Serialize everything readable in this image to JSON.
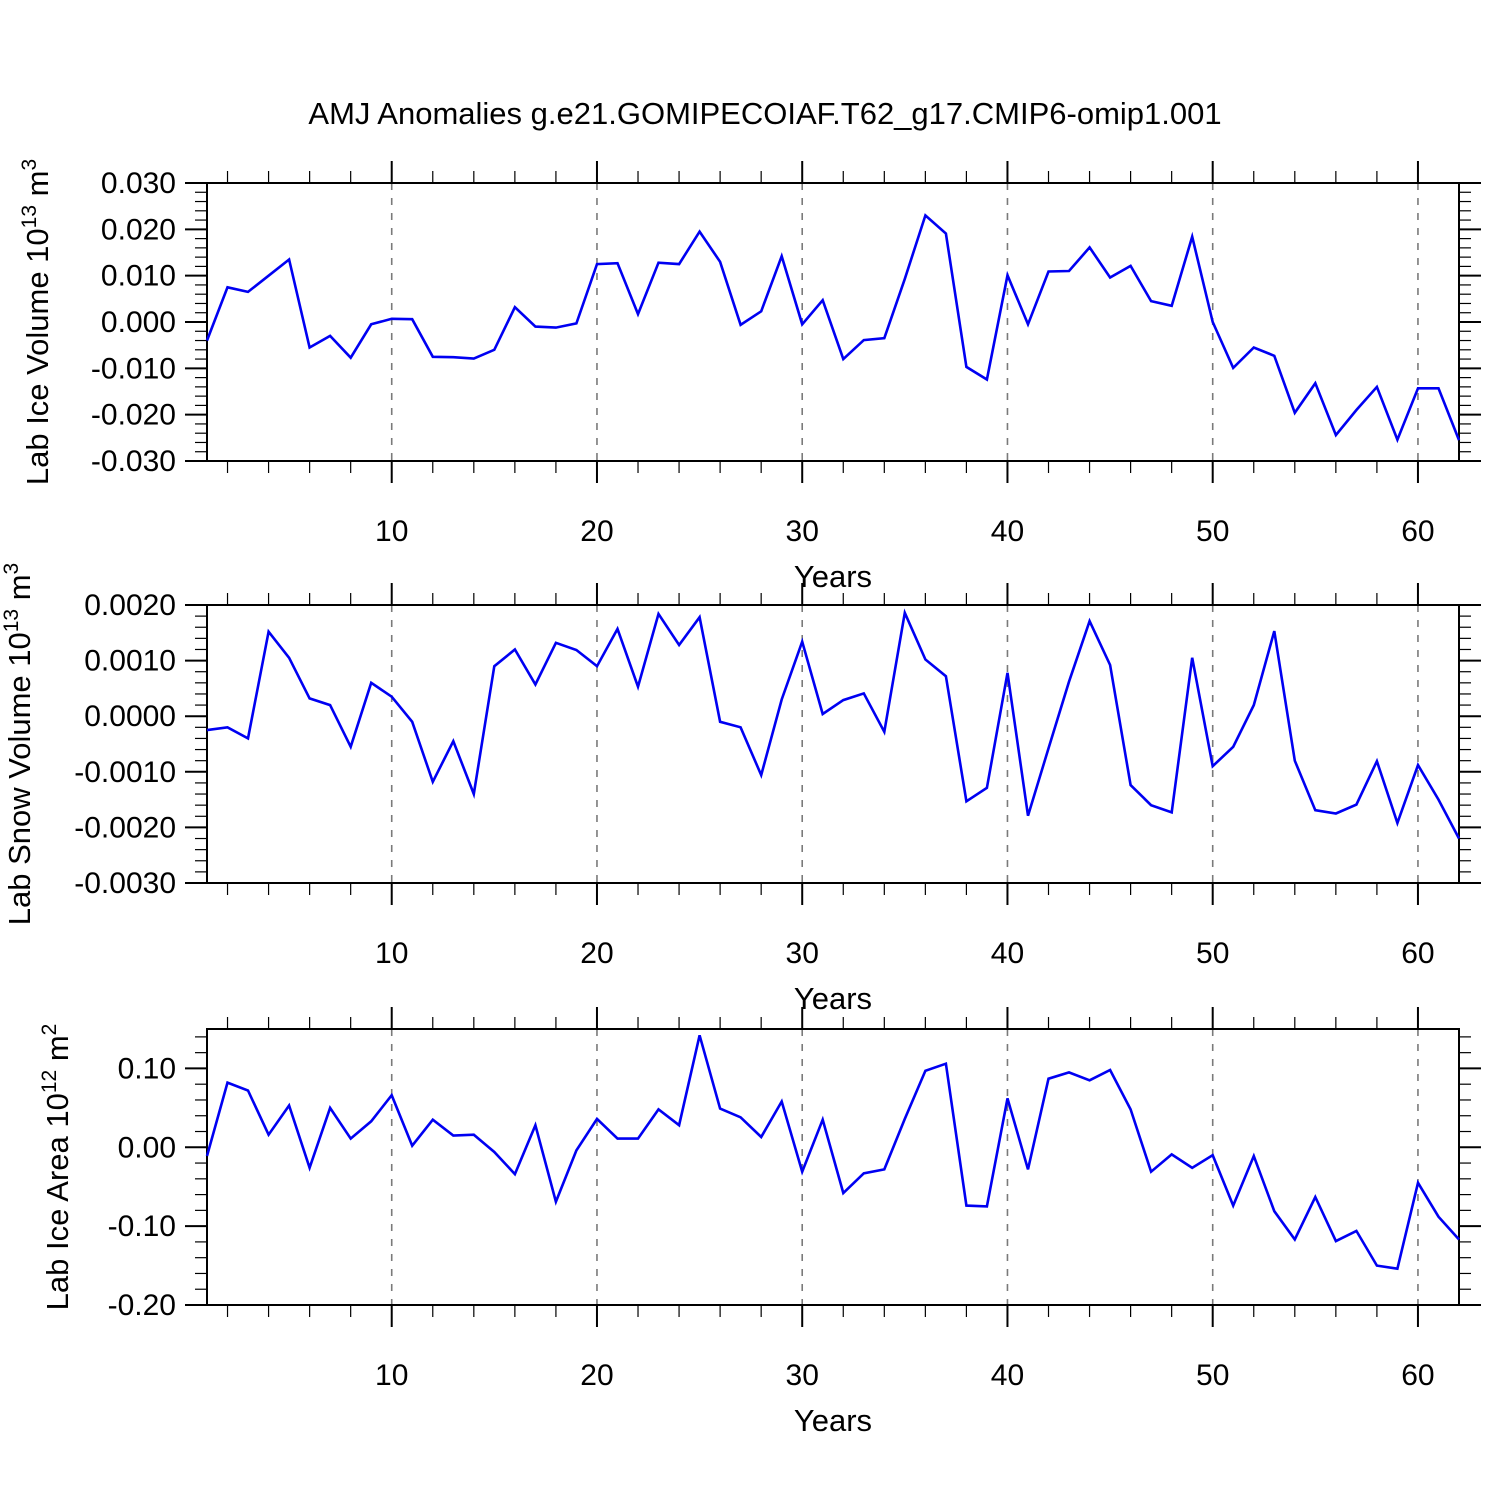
{
  "title": "AMJ Anomalies g.e21.GOMIPECOIAF.T62_g17.CMIP6-omip1.001",
  "line_color": "#0000f2",
  "grid_color": "#7a7a7a",
  "axis_color": "#000000",
  "chart_data": [
    {
      "type": "line",
      "title": "AMJ Anomalies g.e21.GOMIPECOIAF.T62_g17.CMIP6-omip1.001",
      "ylabel": "Lab Ice Volume 10^13 m^3",
      "ylabel_parts": {
        "base": "Lab Ice Volume 10",
        "exp": "13",
        "unit": " m",
        "unit_exp": "3"
      },
      "xlabel": "Years",
      "xlim": [
        1,
        62
      ],
      "ylim": [
        -0.03,
        0.03
      ],
      "xtick_values": [
        10,
        20,
        30,
        40,
        50,
        60
      ],
      "xtick_labels": [
        "10",
        "20",
        "30",
        "40",
        "50",
        "60"
      ],
      "x_minor_step": 2,
      "ytick_values": [
        0.03,
        0.02,
        0.01,
        0.0,
        -0.01,
        -0.02,
        -0.03
      ],
      "ytick_labels": [
        "0.030",
        "0.020",
        "0.010",
        "0.000",
        "-0.010",
        "-0.020",
        "-0.030"
      ],
      "y_minor_step": 0.002,
      "grid": "vertical-dashed",
      "x_start_year": 1,
      "values": [
        -0.004,
        0.0075,
        0.0065,
        0.01,
        0.0135,
        -0.0055,
        -0.003,
        -0.0077,
        -0.0005,
        0.0007,
        0.0006,
        -0.0075,
        -0.0076,
        -0.0079,
        -0.006,
        0.0032,
        -0.001,
        -0.0012,
        -0.0003,
        0.0125,
        0.0127,
        0.0017,
        0.0128,
        0.0125,
        0.0195,
        0.013,
        -0.0006,
        0.0023,
        0.0142,
        -0.0005,
        0.0047,
        -0.008,
        -0.0039,
        -0.0035,
        0.0093,
        0.023,
        0.0191,
        -0.0097,
        -0.0124,
        0.0101,
        -0.0005,
        0.0109,
        0.011,
        0.0161,
        0.0096,
        0.0121,
        0.0045,
        0.0035,
        0.0184,
        0.0,
        -0.0099,
        -0.0055,
        -0.0073,
        -0.0196,
        -0.0132,
        -0.0244,
        -0.019,
        -0.014,
        -0.0254,
        -0.0143,
        -0.0143,
        -0.0255
      ]
    },
    {
      "type": "line",
      "title": "",
      "ylabel": "Lab Snow Volume 10^13 m^3",
      "ylabel_parts": {
        "base": "Lab Snow Volume 10",
        "exp": "13",
        "unit": " m",
        "unit_exp": "3"
      },
      "xlabel": "Years",
      "xlim": [
        1,
        62
      ],
      "ylim": [
        -0.003,
        0.002
      ],
      "xtick_values": [
        10,
        20,
        30,
        40,
        50,
        60
      ],
      "xtick_labels": [
        "10",
        "20",
        "30",
        "40",
        "50",
        "60"
      ],
      "x_minor_step": 2,
      "ytick_values": [
        0.002,
        0.001,
        0.0,
        -0.001,
        -0.002,
        -0.003
      ],
      "ytick_labels": [
        "0.0020",
        "0.0010",
        "0.0000",
        "-0.0010",
        "-0.0020",
        "-0.0030"
      ],
      "y_minor_step": 0.0002,
      "grid": "vertical-dashed",
      "x_start_year": 1,
      "values": [
        -0.00025,
        -0.0002,
        -0.0004,
        0.00152,
        0.00105,
        0.00032,
        0.0002,
        -0.00055,
        0.0006,
        0.00035,
        -0.0001,
        -0.00118,
        -0.00045,
        -0.0014,
        0.0009,
        0.0012,
        0.00057,
        0.00132,
        0.00119,
        0.0009,
        0.00157,
        0.00053,
        0.00184,
        0.00128,
        0.00178,
        -0.0001,
        -0.0002,
        -0.00106,
        0.0003,
        0.00134,
        4e-05,
        0.00029,
        0.00041,
        -0.00028,
        0.00186,
        0.00102,
        0.00072,
        -0.00153,
        -0.00129,
        0.00078,
        -0.00179,
        -0.00058,
        0.00062,
        0.00171,
        0.00092,
        -0.00124,
        -0.0016,
        -0.00173,
        0.00105,
        -0.0009,
        -0.00055,
        0.0002,
        0.00153,
        -0.0008,
        -0.00169,
        -0.00175,
        -0.00159,
        -0.00081,
        -0.00192,
        -0.00088,
        -0.0015,
        -0.0022
      ]
    },
    {
      "type": "line",
      "title": "",
      "ylabel": "Lab Ice Area 10^12 m^2",
      "ylabel_parts": {
        "base": "Lab Ice Area 10",
        "exp": "12",
        "unit": " m",
        "unit_exp": "2"
      },
      "xlabel": "Years",
      "xlim": [
        1,
        62
      ],
      "ylim": [
        -0.2,
        0.15
      ],
      "xtick_values": [
        10,
        20,
        30,
        40,
        50,
        60
      ],
      "xtick_labels": [
        "10",
        "20",
        "30",
        "40",
        "50",
        "60"
      ],
      "x_minor_step": 2,
      "ytick_values": [
        0.1,
        0.0,
        -0.1,
        -0.2
      ],
      "ytick_labels": [
        "0.10",
        "0.00",
        "-0.10",
        "-0.20"
      ],
      "y_minor_step": 0.02,
      "grid": "vertical-dashed",
      "x_start_year": 1,
      "values": [
        -0.011,
        0.082,
        0.072,
        0.016,
        0.053,
        -0.026,
        0.05,
        0.011,
        0.033,
        0.066,
        0.002,
        0.035,
        0.015,
        0.016,
        -0.006,
        -0.034,
        0.028,
        -0.069,
        -0.004,
        0.036,
        0.011,
        0.011,
        0.048,
        0.028,
        0.142,
        0.049,
        0.038,
        0.013,
        0.058,
        -0.031,
        0.035,
        -0.058,
        -0.033,
        -0.028,
        0.036,
        0.097,
        0.106,
        -0.074,
        -0.075,
        0.062,
        -0.028,
        0.087,
        0.095,
        0.085,
        0.098,
        0.048,
        -0.031,
        -0.009,
        -0.026,
        -0.01,
        -0.074,
        -0.011,
        -0.081,
        -0.117,
        -0.063,
        -0.119,
        -0.106,
        -0.15,
        -0.154,
        -0.045,
        -0.088,
        -0.117
      ]
    }
  ]
}
